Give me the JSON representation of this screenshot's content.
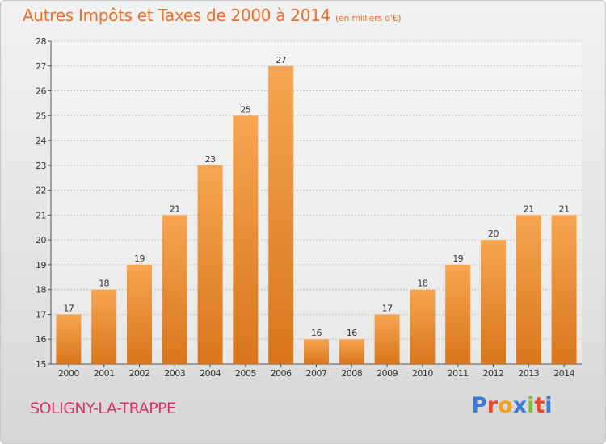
{
  "title": "Autres Impôts et Taxes de 2000 à 2014",
  "unit": "(en milliers d'€)",
  "commune": "SOLIGNY-LA-TRAPPE",
  "logo": {
    "letters": [
      "P",
      "r",
      "o",
      "x",
      "i",
      "t",
      "i"
    ],
    "colors": [
      "#3a7bd5",
      "#e84a2a",
      "#f2a31c",
      "#3a7bd5",
      "#7cbf3a",
      "#e84a2a",
      "#3a7bd5"
    ]
  },
  "colors": {
    "bar_light": "#f6a552",
    "bar_dark": "#d8761c",
    "title": "#e8702a",
    "commune": "#d6336c"
  },
  "chart_data": {
    "type": "bar",
    "categories": [
      "2000",
      "2001",
      "2002",
      "2003",
      "2004",
      "2005",
      "2006",
      "2007",
      "2008",
      "2009",
      "2010",
      "2011",
      "2012",
      "2013",
      "2014"
    ],
    "values": [
      17,
      18,
      19,
      21,
      23,
      25,
      27,
      16,
      16,
      17,
      18,
      19,
      20,
      21,
      21
    ],
    "ylim": [
      15,
      28
    ],
    "yticks": [
      15,
      16,
      17,
      18,
      19,
      20,
      21,
      22,
      23,
      24,
      25,
      26,
      27,
      28
    ],
    "grid": "horizontal",
    "legend": "none"
  }
}
